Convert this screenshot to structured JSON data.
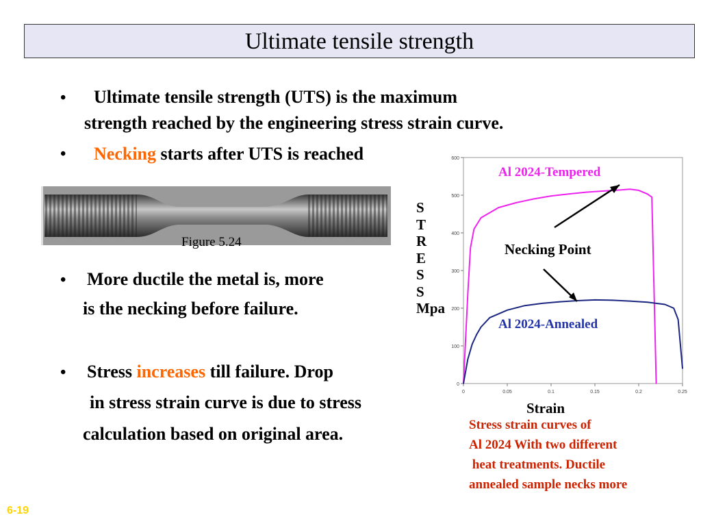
{
  "title": "Ultimate tensile strength",
  "bullets": {
    "b1": {
      "line1": "Ultimate tensile strength (UTS) is the maximum",
      "line2": "strength reached by the engineering stress strain curve."
    },
    "b2": {
      "highlight": "Necking",
      "rest": " starts after UTS is reached"
    },
    "b3": {
      "line1": "More ductile the metal is, more",
      "line2": "is the necking before failure."
    },
    "b4": {
      "pre": "Stress ",
      "highlight": "increases",
      "post": " till failure. Drop",
      "line2": "in stress strain curve is due to stress",
      "line3": "calculation based on original area."
    },
    "marker": "•"
  },
  "figure_caption": "Figure 5.24",
  "photo_icon": "tensile-specimen-necked",
  "stress_axis_letters": [
    "S",
    "T",
    "R",
    "E",
    "S",
    "S",
    "Mpa"
  ],
  "chart_labels": {
    "tempered": "Al 2024-Tempered",
    "annealed": "Al 2024-Annealed",
    "necking_point": "Necking Point",
    "strain": "Strain"
  },
  "caption": {
    "line1": "Stress strain curves of",
    "line2": "Al 2024 With two different",
    "line3": " heat treatments. Ductile",
    "line4": "annealed sample necks more"
  },
  "slide_number": "6-19",
  "colors": {
    "title_bg": "#e6e6f5",
    "highlight": "#ff6600",
    "tempered": "#ee22ee",
    "annealed": "#1a2580",
    "caption": "#cc2200",
    "slide_number": "#ffd400"
  },
  "chart_data": {
    "type": "line",
    "xlabel": "Strain",
    "ylabel": "STRESS Mpa",
    "xlim": [
      0,
      0.25
    ],
    "ylim": [
      0,
      600
    ],
    "x_ticks": [
      0,
      0.05,
      0.1,
      0.15,
      0.2,
      0.25
    ],
    "y_ticks": [
      0,
      100,
      200,
      300,
      400,
      500,
      600
    ],
    "annotation": "Necking Point",
    "series": [
      {
        "name": "Al 2024-Tempered",
        "x": [
          0,
          0.005,
          0.008,
          0.012,
          0.02,
          0.04,
          0.06,
          0.08,
          0.1,
          0.12,
          0.14,
          0.16,
          0.18,
          0.19,
          0.2,
          0.21,
          0.215,
          0.22
        ],
        "y": [
          0,
          240,
          360,
          410,
          440,
          467,
          480,
          490,
          498,
          503,
          508,
          511,
          514,
          516,
          513,
          503,
          495,
          0
        ]
      },
      {
        "name": "Al 2024-Annealed",
        "x": [
          0,
          0.005,
          0.01,
          0.015,
          0.02,
          0.03,
          0.05,
          0.07,
          0.09,
          0.11,
          0.13,
          0.15,
          0.17,
          0.19,
          0.21,
          0.23,
          0.24,
          0.245,
          0.25
        ],
        "y": [
          0,
          65,
          105,
          130,
          150,
          175,
          195,
          207,
          213,
          217,
          220,
          222,
          221,
          219,
          216,
          210,
          200,
          170,
          40
        ]
      }
    ]
  }
}
